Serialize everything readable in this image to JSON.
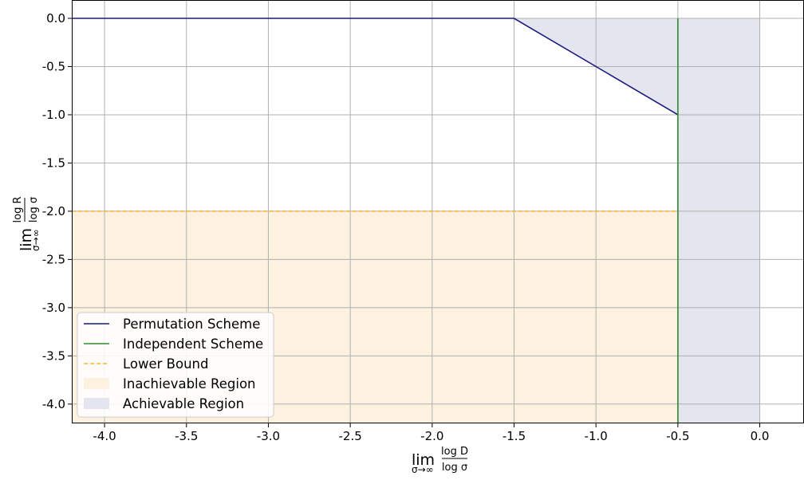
{
  "chart_data": {
    "type": "line",
    "xlabel": {
      "lim": "lim",
      "sub": "σ→∞",
      "num": "log D",
      "den": "log σ"
    },
    "ylabel": {
      "lim": "lim",
      "sub": "σ→∞",
      "num": "log R",
      "den": "log σ"
    },
    "xlim": [
      -4.2,
      0.27
    ],
    "ylim": [
      -4.2,
      0.19
    ],
    "xticks": [
      -4.0,
      -3.5,
      -3.0,
      -2.5,
      -2.0,
      -1.5,
      -1.0,
      -0.5,
      0.0
    ],
    "xtick_labels": [
      "-4.0",
      "-3.5",
      "-3.0",
      "-2.5",
      "-2.0",
      "-1.5",
      "-1.0",
      "-0.5",
      "0.0"
    ],
    "yticks": [
      0.0,
      -0.5,
      -1.0,
      -1.5,
      -2.0,
      -2.5,
      -3.0,
      -3.5,
      -4.0
    ],
    "ytick_labels": [
      "0.0",
      "-0.5",
      "-1.0",
      "-1.5",
      "-2.0",
      "-2.5",
      "-3.0",
      "-3.5",
      "-4.0"
    ],
    "grid": true,
    "legend_position": "lower-left",
    "series": [
      {
        "name": "Permutation Scheme",
        "kind": "line",
        "color": "#1a1a80",
        "points": [
          [
            -4.2,
            0.0
          ],
          [
            -1.5,
            0.0
          ],
          [
            -0.5,
            -1.0
          ]
        ]
      },
      {
        "name": "Independent Scheme",
        "kind": "line",
        "color": "#2e8b2e",
        "points": [
          [
            -0.5,
            0.0
          ],
          [
            -0.5,
            -4.2
          ]
        ]
      },
      {
        "name": "Lower Bound",
        "kind": "dashed",
        "color": "#ffa500",
        "points": [
          [
            -4.2,
            -2.0
          ],
          [
            -0.5,
            -2.0
          ]
        ]
      }
    ],
    "regions": [
      {
        "name": "Inachievable Region",
        "color": "#fdf2e0",
        "polygon": [
          [
            -4.2,
            -2.0
          ],
          [
            -0.5,
            -2.0
          ],
          [
            -0.5,
            -4.2
          ],
          [
            -4.2,
            -4.2
          ]
        ]
      },
      {
        "name": "Achievable Region",
        "color": "#e5e5f0",
        "polygon": [
          [
            -1.5,
            0.0
          ],
          [
            0.0,
            0.0
          ],
          [
            0.0,
            -4.2
          ],
          [
            -0.5,
            -4.2
          ],
          [
            -0.5,
            -1.0
          ]
        ]
      }
    ]
  }
}
